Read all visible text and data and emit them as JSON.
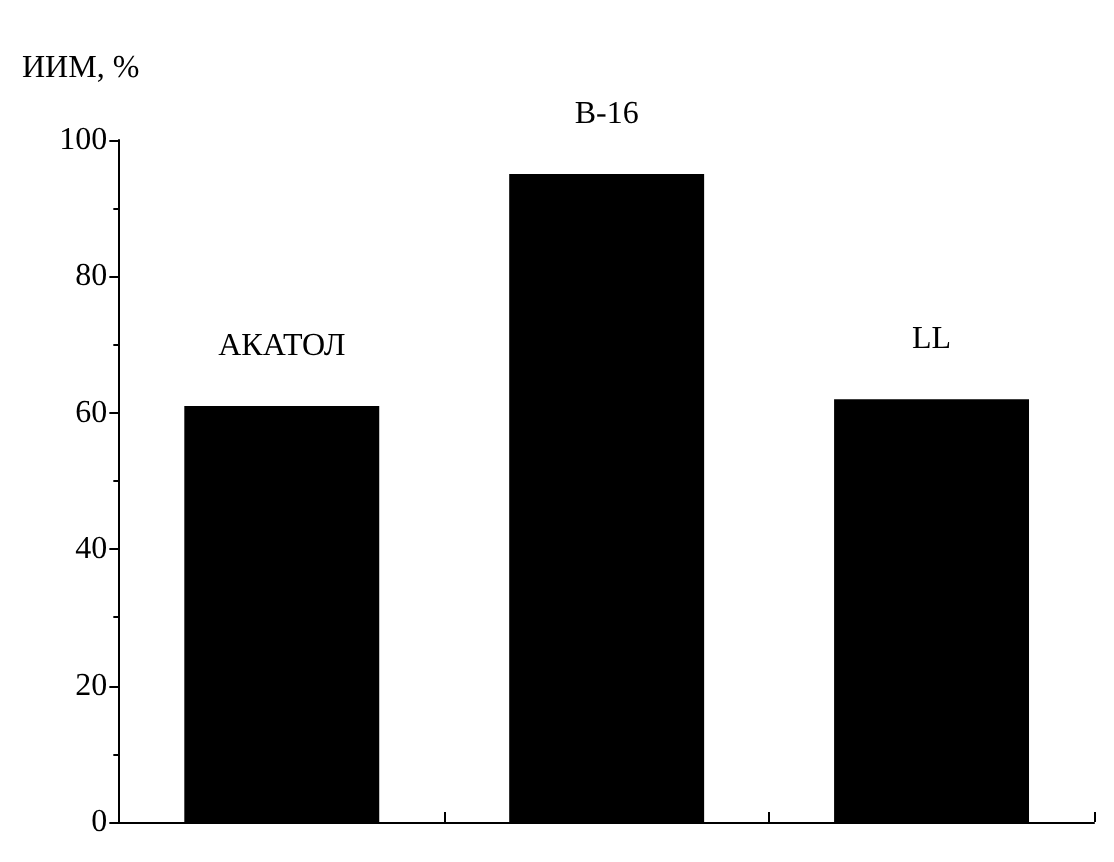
{
  "chart_data": {
    "type": "bar",
    "ylabel": "ИИМ, %",
    "categories": [
      "АКАТОЛ",
      "B-16",
      "LL"
    ],
    "values": [
      61,
      95,
      62
    ],
    "color": "#000000",
    "ylim": [
      0,
      100
    ],
    "yticks": [
      0,
      20,
      40,
      60,
      80,
      100
    ],
    "grid": false
  }
}
